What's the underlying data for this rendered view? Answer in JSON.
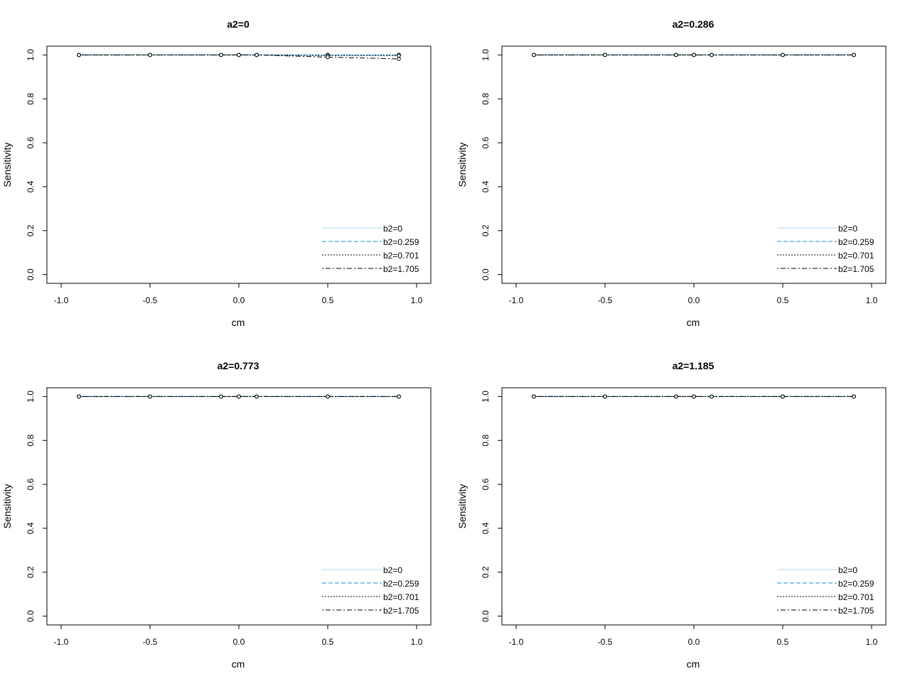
{
  "chart_data": [
    {
      "type": "line",
      "title": "a2=0",
      "x_label": "cm",
      "y_label": "Sensitivity",
      "x": [
        -0.9,
        -0.5,
        -0.1,
        0,
        0.1,
        0.5,
        0.9
      ],
      "series": [
        {
          "name": "b2=0",
          "color": "#add8e6",
          "dash": "solid",
          "values": [
            1,
            1,
            1,
            1,
            1,
            1,
            1
          ]
        },
        {
          "name": "b2=0.259",
          "color": "#1e90cc",
          "dash": "dashed",
          "values": [
            1,
            1,
            1,
            1,
            1,
            1,
            1
          ]
        },
        {
          "name": "b2=0.701",
          "color": "#000000",
          "dash": "dotted",
          "values": [
            1,
            1,
            1,
            1,
            1,
            0.997,
            0.997
          ]
        },
        {
          "name": "b2=1.705",
          "color": "#000000",
          "dash": "dotdash",
          "values": [
            1,
            1,
            1,
            1,
            1,
            0.99,
            0.982
          ]
        }
      ],
      "xlim": [
        -1.08,
        1.08
      ],
      "ylim": [
        -0.04,
        1.04
      ],
      "xticks": [
        {
          "value": -1,
          "label": "-1.0"
        },
        -0.5,
        {
          "value": 0,
          "label": "0.0"
        },
        0.5,
        {
          "value": 1,
          "label": "1.0"
        }
      ],
      "yticks": [
        {
          "value": 0,
          "label": "0.0"
        },
        0.2,
        0.4,
        0.6,
        0.8,
        {
          "value": 1,
          "label": "1.0"
        }
      ],
      "legend": "bottom-right",
      "grid": false
    },
    {
      "type": "line",
      "title": "a2=0.286",
      "x_label": "cm",
      "y_label": "Sensitivity",
      "x": [
        -0.9,
        -0.5,
        -0.1,
        0,
        0.1,
        0.5,
        0.9
      ],
      "series": [
        {
          "name": "b2=0",
          "color": "#add8e6",
          "dash": "solid",
          "values": [
            1,
            1,
            1,
            1,
            1,
            1,
            1
          ]
        },
        {
          "name": "b2=0.259",
          "color": "#1e90cc",
          "dash": "dashed",
          "values": [
            1,
            1,
            1,
            1,
            1,
            1,
            1
          ]
        },
        {
          "name": "b2=0.701",
          "color": "#000000",
          "dash": "dotted",
          "values": [
            1,
            1,
            1,
            1,
            1,
            1,
            1
          ]
        },
        {
          "name": "b2=1.705",
          "color": "#000000",
          "dash": "dotdash",
          "values": [
            1,
            1,
            1,
            1,
            1,
            1,
            1
          ]
        }
      ],
      "xlim": [
        -1.08,
        1.08
      ],
      "ylim": [
        -0.04,
        1.04
      ],
      "xticks": [
        {
          "value": -1,
          "label": "-1.0"
        },
        -0.5,
        {
          "value": 0,
          "label": "0.0"
        },
        0.5,
        {
          "value": 1,
          "label": "1.0"
        }
      ],
      "yticks": [
        {
          "value": 0,
          "label": "0.0"
        },
        0.2,
        0.4,
        0.6,
        0.8,
        {
          "value": 1,
          "label": "1.0"
        }
      ],
      "legend": "bottom-right",
      "grid": false
    },
    {
      "type": "line",
      "title": "a2=0.773",
      "x_label": "cm",
      "y_label": "Sensitivity",
      "x": [
        -0.9,
        -0.5,
        -0.1,
        0,
        0.1,
        0.5,
        0.9
      ],
      "series": [
        {
          "name": "b2=0",
          "color": "#add8e6",
          "dash": "solid",
          "values": [
            1,
            1,
            1,
            1,
            1,
            1,
            1
          ]
        },
        {
          "name": "b2=0.259",
          "color": "#1e90cc",
          "dash": "dashed",
          "values": [
            1,
            1,
            1,
            1,
            1,
            1,
            1
          ]
        },
        {
          "name": "b2=0.701",
          "color": "#000000",
          "dash": "dotted",
          "values": [
            1,
            1,
            1,
            1,
            1,
            1,
            1
          ]
        },
        {
          "name": "b2=1.705",
          "color": "#000000",
          "dash": "dotdash",
          "values": [
            1,
            1,
            1,
            1,
            1,
            1,
            1
          ]
        }
      ],
      "xlim": [
        -1.08,
        1.08
      ],
      "ylim": [
        -0.04,
        1.04
      ],
      "xticks": [
        {
          "value": -1,
          "label": "-1.0"
        },
        -0.5,
        {
          "value": 0,
          "label": "0.0"
        },
        0.5,
        {
          "value": 1,
          "label": "1.0"
        }
      ],
      "yticks": [
        {
          "value": 0,
          "label": "0.0"
        },
        0.2,
        0.4,
        0.6,
        0.8,
        {
          "value": 1,
          "label": "1.0"
        }
      ],
      "legend": "bottom-right",
      "grid": false
    },
    {
      "type": "line",
      "title": "a2=1.185",
      "x_label": "cm",
      "y_label": "Sensitivity",
      "x": [
        -0.9,
        -0.5,
        -0.1,
        0,
        0.1,
        0.5,
        0.9
      ],
      "series": [
        {
          "name": "b2=0",
          "color": "#add8e6",
          "dash": "solid",
          "values": [
            1,
            1,
            1,
            1,
            1,
            1,
            1
          ]
        },
        {
          "name": "b2=0.259",
          "color": "#1e90cc",
          "dash": "dashed",
          "values": [
            1,
            1,
            1,
            1,
            1,
            1,
            1
          ]
        },
        {
          "name": "b2=0.701",
          "color": "#000000",
          "dash": "dotted",
          "values": [
            1,
            1,
            1,
            1,
            1,
            1,
            1
          ]
        },
        {
          "name": "b2=1.705",
          "color": "#000000",
          "dash": "dotdash",
          "values": [
            1,
            1,
            1,
            1,
            1,
            1,
            1
          ]
        }
      ],
      "xlim": [
        -1.08,
        1.08
      ],
      "ylim": [
        -0.04,
        1.04
      ],
      "xticks": [
        {
          "value": -1,
          "label": "-1.0"
        },
        -0.5,
        {
          "value": 0,
          "label": "0.0"
        },
        0.5,
        {
          "value": 1,
          "label": "1.0"
        }
      ],
      "yticks": [
        {
          "value": 0,
          "label": "0.0"
        },
        0.2,
        0.4,
        0.6,
        0.8,
        {
          "value": 1,
          "label": "1.0"
        }
      ],
      "legend": "bottom-right",
      "grid": false
    }
  ]
}
